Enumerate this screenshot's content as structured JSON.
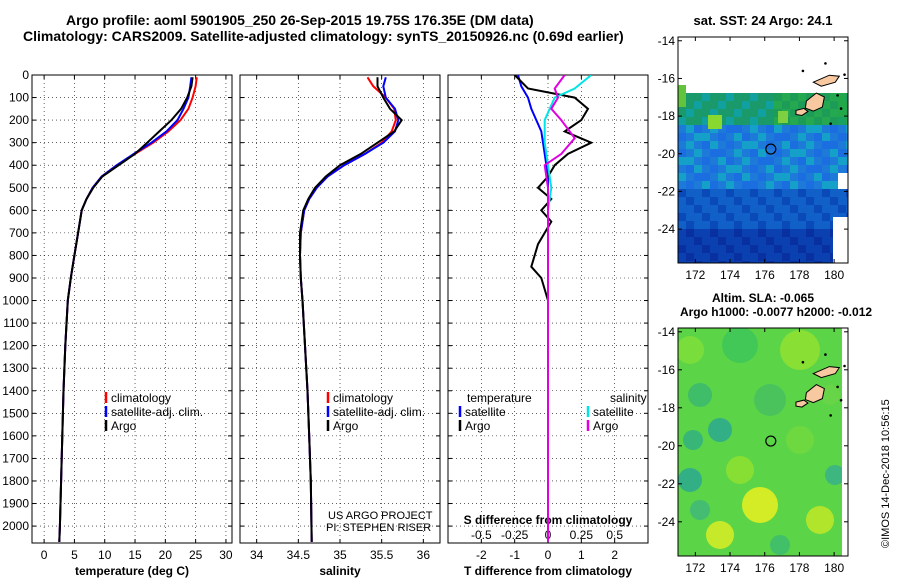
{
  "header": {
    "line1": "Argo profile: aoml 5901905_250 26-Sep-2015 19.75S 176.35E (DM data)",
    "line2": "Climatology: CARS2009. Satellite-adjusted climatology: synTS_20150926.nc (0.69d earlier)"
  },
  "credits": {
    "project": "US ARGO PROJECT",
    "pi": "PI: STEPHEN RISER",
    "stamp": "©IMOS 14-Dec-2018 10:56:15"
  },
  "colors": {
    "climatology": "#ff0000",
    "satellite": "#0000ff",
    "argo": "#000000",
    "sal_satellite": "#00e5e5",
    "sal_argo": "#e000e0"
  },
  "chart_data": [
    {
      "type": "line",
      "xlabel": "temperature (deg C)",
      "xlim": [
        -2,
        31
      ],
      "xticks": [
        0,
        5,
        10,
        15,
        20,
        25,
        30
      ],
      "xtick_labels": [
        "0",
        "5",
        "10",
        "15",
        "20",
        "25",
        "30"
      ],
      "ylim": [
        2075,
        0
      ],
      "yticks": [
        0,
        100,
        200,
        300,
        400,
        500,
        600,
        700,
        800,
        900,
        1000,
        1100,
        1200,
        1300,
        1400,
        1500,
        1600,
        1700,
        1800,
        1900,
        2000
      ],
      "ytick_labels": [
        "0",
        "100",
        "200",
        "300",
        "400",
        "500",
        "600",
        "700",
        "800",
        "900",
        "1000",
        "1100",
        "1200",
        "1300",
        "1400",
        "1500",
        "1600",
        "1700",
        "1800",
        "1900",
        "2000"
      ],
      "grid": true,
      "legend": {
        "position": "lower-center",
        "entries": [
          "climatology",
          "satellite-adj. clim.",
          "Argo"
        ]
      },
      "series": [
        {
          "name": "climatology",
          "color": "#ff0000",
          "x": [
            25.2,
            25.0,
            24.5,
            23.8,
            22.5,
            20.5,
            18.0,
            15.0,
            12.0,
            9.5,
            8.0,
            7.0,
            6.2,
            5.6,
            5.0,
            4.4,
            3.9,
            3.5,
            3.2,
            3.0,
            2.8,
            2.6,
            2.5
          ],
          "y": [
            10,
            50,
            100,
            150,
            200,
            250,
            300,
            350,
            400,
            450,
            500,
            550,
            600,
            700,
            800,
            900,
            1000,
            1200,
            1400,
            1600,
            1800,
            2000,
            2070
          ]
        },
        {
          "name": "satellite-adj. clim.",
          "color": "#0000ff",
          "x": [
            24.3,
            24.1,
            23.8,
            23.0,
            22.0,
            20.2,
            17.7,
            14.8,
            12.0,
            9.5,
            8.0,
            7.0,
            6.2,
            5.6,
            5.0,
            4.4,
            3.9,
            3.5,
            3.2,
            3.0,
            2.8,
            2.6,
            2.5
          ],
          "y": [
            10,
            50,
            100,
            150,
            200,
            250,
            300,
            350,
            400,
            450,
            500,
            550,
            600,
            700,
            800,
            900,
            1000,
            1200,
            1400,
            1600,
            1800,
            2000,
            2070
          ]
        },
        {
          "name": "Argo",
          "color": "#000000",
          "x": [
            24.5,
            24.3,
            23.6,
            22.6,
            21.0,
            19.0,
            17.0,
            15.0,
            12.3,
            9.6,
            8.1,
            7.0,
            6.2,
            5.6,
            5.0,
            4.4,
            3.9,
            3.5,
            3.2,
            3.0,
            2.8,
            2.6,
            2.5
          ],
          "y": [
            10,
            50,
            100,
            150,
            200,
            250,
            300,
            350,
            400,
            450,
            500,
            550,
            600,
            700,
            800,
            900,
            1000,
            1200,
            1400,
            1600,
            1800,
            2000,
            2070
          ]
        }
      ]
    },
    {
      "type": "line",
      "xlabel": "salinity",
      "xlim": [
        33.8,
        36.2
      ],
      "xticks": [
        34,
        34.5,
        35,
        35.5,
        36
      ],
      "xtick_labels": [
        "34",
        "34.5",
        "35",
        "35.5",
        "36"
      ],
      "ylim": [
        2075,
        0
      ],
      "yticks": [
        0,
        100,
        200,
        300,
        400,
        500,
        600,
        700,
        800,
        900,
        1000,
        1100,
        1200,
        1300,
        1400,
        1500,
        1600,
        1700,
        1800,
        1900,
        2000
      ],
      "grid": true,
      "legend": {
        "position": "lower-center",
        "entries": [
          "climatology",
          "satellite-adj. clim.",
          "Argo"
        ]
      },
      "series": [
        {
          "name": "climatology",
          "color": "#ff0000",
          "x": [
            35.33,
            35.4,
            35.55,
            35.65,
            35.67,
            35.62,
            35.5,
            35.3,
            35.05,
            34.85,
            34.72,
            34.63,
            34.57,
            34.53,
            34.52,
            34.53,
            34.55,
            34.58,
            34.61,
            34.63,
            34.65,
            34.66
          ],
          "y": [
            10,
            50,
            100,
            150,
            200,
            250,
            300,
            350,
            400,
            450,
            500,
            550,
            600,
            700,
            800,
            900,
            1000,
            1200,
            1400,
            1600,
            1800,
            2070
          ]
        },
        {
          "name": "satellite-adj. clim.",
          "color": "#0000ff",
          "x": [
            35.55,
            35.52,
            35.55,
            35.66,
            35.7,
            35.66,
            35.52,
            35.3,
            35.05,
            34.85,
            34.72,
            34.63,
            34.57,
            34.53,
            34.52,
            34.53,
            34.55,
            34.58,
            34.61,
            34.63,
            34.65,
            34.66
          ],
          "y": [
            10,
            50,
            100,
            150,
            200,
            250,
            300,
            350,
            400,
            450,
            500,
            550,
            600,
            700,
            800,
            900,
            1000,
            1200,
            1400,
            1600,
            1800,
            2070
          ]
        },
        {
          "name": "Argo",
          "color": "#000000",
          "x": [
            35.45,
            35.45,
            35.52,
            35.6,
            35.74,
            35.65,
            35.45,
            35.25,
            35.0,
            34.83,
            34.7,
            34.62,
            34.56,
            34.52,
            34.52,
            34.53,
            34.55,
            34.58,
            34.61,
            34.63,
            34.65,
            34.66
          ],
          "y": [
            10,
            50,
            100,
            150,
            200,
            250,
            300,
            350,
            400,
            450,
            500,
            550,
            600,
            700,
            800,
            900,
            1000,
            1200,
            1400,
            1600,
            1800,
            2070
          ]
        }
      ]
    },
    {
      "type": "line",
      "xlabel": "T difference from climatology",
      "xlabel2": "S difference from climatology",
      "xlim": [
        -3,
        3
      ],
      "xticks": [
        -2,
        -1,
        0,
        1,
        2
      ],
      "xtick_labels": [
        "-2",
        "-1",
        "0",
        "1",
        "2"
      ],
      "xticks2": [
        -2,
        -1,
        0,
        1,
        2
      ],
      "xtick_labels2": [
        "-0.5",
        "-0.25",
        "0",
        "0.25",
        "0.5"
      ],
      "ylim": [
        2075,
        0
      ],
      "yticks": [
        0,
        100,
        200,
        300,
        400,
        500,
        600,
        700,
        800,
        900,
        1000,
        1100,
        1200,
        1300,
        1400,
        1500,
        1600,
        1700,
        1800,
        1900,
        2000
      ],
      "grid": true,
      "legend": {
        "position": "lower",
        "left_title": "temperature",
        "right_title": "salinity",
        "entries_left": [
          "satellite",
          "Argo"
        ],
        "entries_right": [
          "satellite",
          "Argo"
        ]
      },
      "series": [
        {
          "name": "satellite",
          "group": "temperature",
          "color": "#0000ff",
          "x": [
            -0.9,
            -0.8,
            -0.6,
            -0.5,
            -0.2,
            -0.1,
            0,
            0,
            0,
            0,
            0,
            0,
            0,
            0,
            0,
            0,
            0
          ],
          "y": [
            0,
            50,
            100,
            150,
            250,
            350,
            450,
            550,
            700,
            800,
            900,
            1000,
            1200,
            1400,
            1600,
            1800,
            2070
          ]
        },
        {
          "name": "Argo",
          "group": "temperature",
          "color": "#000000",
          "x": [
            -1.0,
            -0.6,
            0.8,
            1.2,
            1.0,
            0.5,
            1.3,
            0.6,
            0.2,
            0,
            -0.3,
            0.1,
            -0.2,
            0.1,
            -0.3,
            -0.5,
            -0.2,
            0,
            0,
            0,
            0
          ],
          "y": [
            0,
            60,
            100,
            150,
            200,
            250,
            300,
            350,
            400,
            450,
            500,
            550,
            600,
            650,
            750,
            850,
            900,
            1000,
            1200,
            1600,
            2070
          ]
        },
        {
          "name": "satellite",
          "group": "salinity",
          "color": "#00e5e5",
          "x": [
            1.3,
            0.8,
            0.2,
            -0.1,
            -0.1,
            0.0,
            0.1,
            0,
            0,
            0,
            0,
            0,
            0,
            0
          ],
          "y": [
            0,
            60,
            100,
            200,
            300,
            400,
            500,
            600,
            800,
            1000,
            1200,
            1400,
            1800,
            2070
          ]
        },
        {
          "name": "Argo",
          "group": "salinity",
          "color": "#e000e0",
          "x": [
            0.5,
            0.2,
            0.3,
            0.1,
            0.4,
            0.8,
            0.4,
            -0.1,
            0.0,
            0.0,
            0,
            0,
            0
          ],
          "y": [
            0,
            60,
            100,
            150,
            200,
            280,
            350,
            400,
            500,
            600,
            800,
            1200,
            2070
          ]
        }
      ]
    },
    {
      "type": "heatmap",
      "title": "sat. SST: 24  Argo: 24.1",
      "xlim": [
        171,
        180.8
      ],
      "ylim": [
        -25.8,
        -13.8
      ],
      "xticks": [
        172,
        174,
        176,
        178,
        180
      ],
      "xtick_labels": [
        "172",
        "174",
        "176",
        "178",
        "180"
      ],
      "yticks": [
        -14,
        -16,
        -18,
        -20,
        -22,
        -24
      ],
      "ytick_labels": [
        "-14",
        "-16",
        "-18",
        "-20",
        "-22",
        "-24"
      ],
      "marker": {
        "lon": 176.35,
        "lat": -19.75
      }
    },
    {
      "type": "heatmap",
      "title": "Altim. SLA: -0.065",
      "subtitle": "Argo h1000: -0.0077 h2000: -0.012",
      "xlim": [
        171,
        180.8
      ],
      "ylim": [
        -25.8,
        -13.8
      ],
      "xticks": [
        172,
        174,
        176,
        178,
        180
      ],
      "xtick_labels": [
        "172",
        "174",
        "176",
        "178",
        "180"
      ],
      "yticks": [
        -14,
        -16,
        -18,
        -20,
        -22,
        -24
      ],
      "ytick_labels": [
        "-14",
        "-16",
        "-18",
        "-20",
        "-22",
        "-24"
      ],
      "marker": {
        "lon": 176.35,
        "lat": -19.75
      }
    }
  ]
}
